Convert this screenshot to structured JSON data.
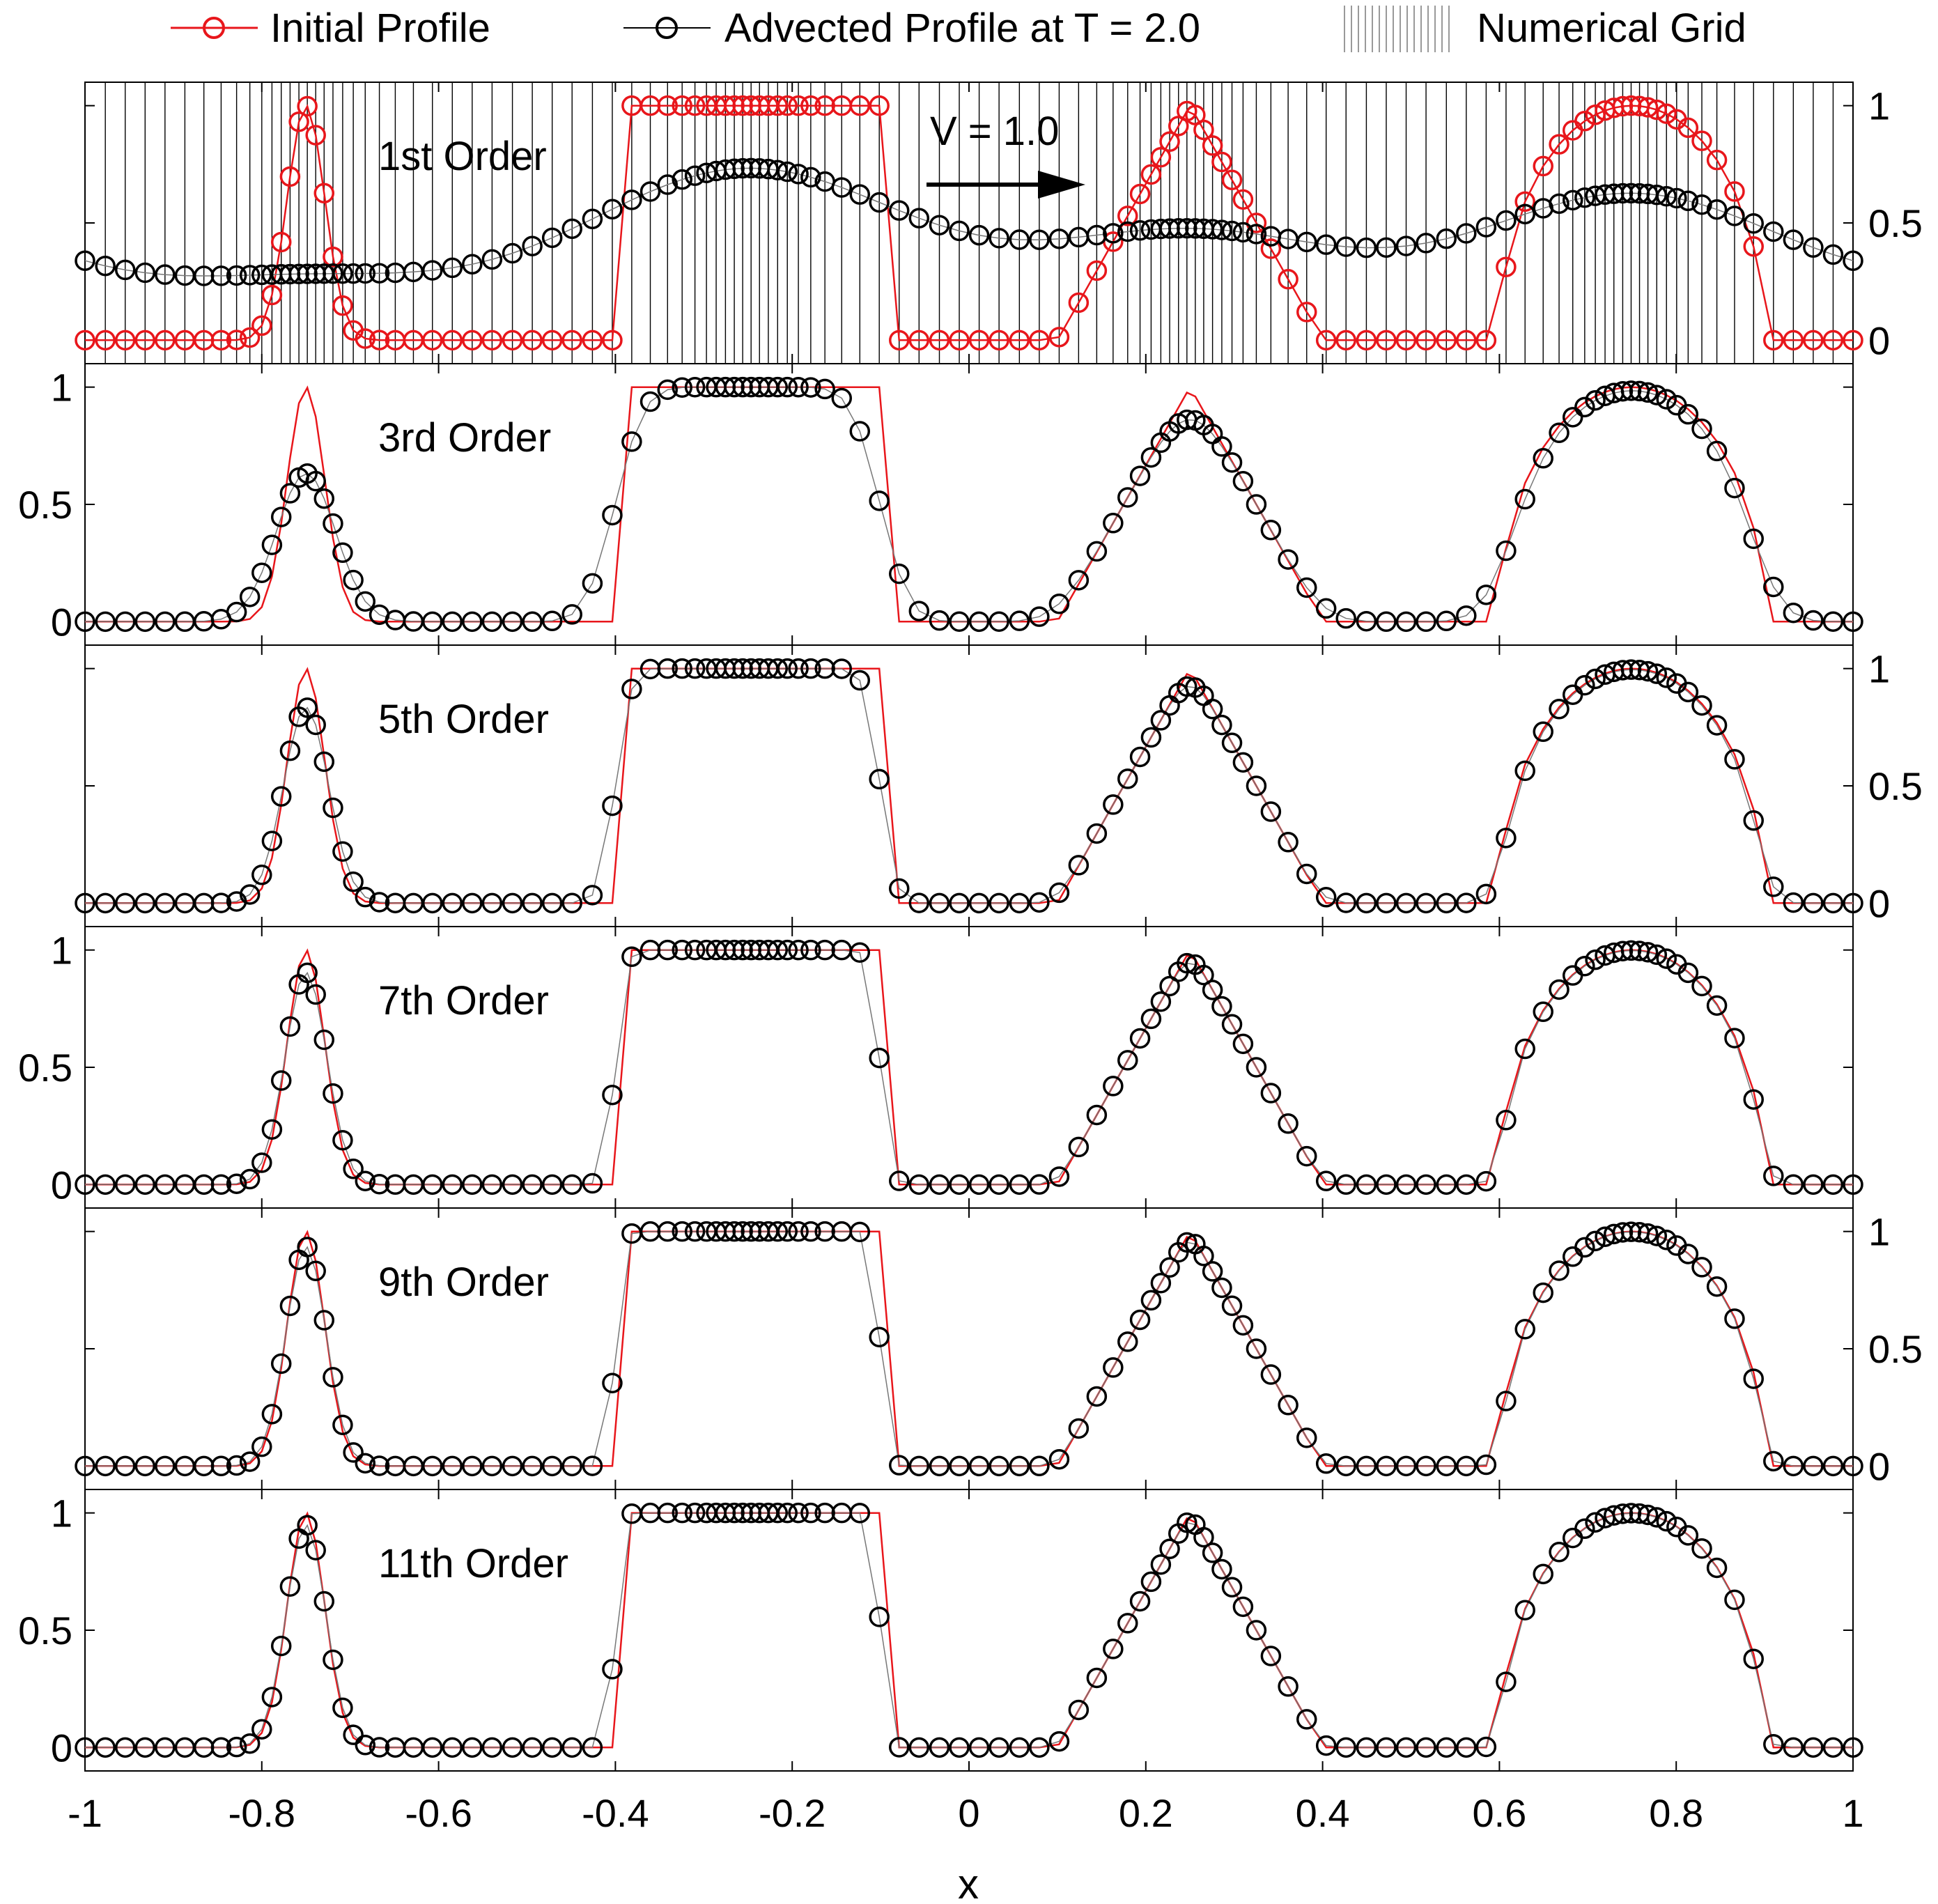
{
  "legend": {
    "initial_label": "Initial Profile",
    "advected_label": "Advected Profile at T = 2.0",
    "grid_label": "Numerical Grid"
  },
  "annotation": {
    "velocity_label": "V = 1.0"
  },
  "colors": {
    "initial": "#e8161b",
    "advected": "#000000",
    "grid": "#000000"
  },
  "chart_data": {
    "type": "line",
    "xlabel": "x",
    "ylabel": "",
    "xlim": [
      -1,
      1
    ],
    "ylim": [
      -0.1,
      1.1
    ],
    "x_ticks": [
      "-1",
      "-0.8",
      "-0.6",
      "-0.4",
      "-0.2",
      "0",
      "0.2",
      "0.4",
      "0.6",
      "0.8",
      "1"
    ],
    "y_ticks": [
      "0",
      "0.5",
      "1"
    ],
    "grid_points": 120,
    "grid_cluster_x": [
      -0.75,
      -0.25,
      0.25,
      0.75
    ],
    "initial_profile": {
      "name": "Initial Profile",
      "gaussian_pulse": {
        "center": -0.75,
        "height": 1.0,
        "width": 0.03
      },
      "square_pulse": {
        "x_min": -0.4,
        "x_max": -0.1,
        "height": 1.0
      },
      "triangle_pulse": {
        "center": 0.25,
        "half_width": 0.15,
        "height": 1.0
      },
      "semicircle_pulse": {
        "center": 0.75,
        "radius": 0.15,
        "height": 1.0
      }
    },
    "panels": [
      {
        "label": "1st Order",
        "y_axis_side": "right",
        "advected_profile": {
          "diffusion_sigma": 0.15,
          "floor": 0.15
        }
      },
      {
        "label": "3rd Order",
        "y_axis_side": "left",
        "advected_profile": {
          "diffusion_sigma": 0.026,
          "floor": 0
        }
      },
      {
        "label": "5th Order",
        "y_axis_side": "right",
        "advected_profile": {
          "diffusion_sigma": 0.014,
          "floor": 0
        }
      },
      {
        "label": "7th Order",
        "y_axis_side": "left",
        "advected_profile": {
          "diffusion_sigma": 0.01,
          "floor": 0
        }
      },
      {
        "label": "9th Order",
        "y_axis_side": "right",
        "advected_profile": {
          "diffusion_sigma": 0.008,
          "floor": 0
        }
      },
      {
        "label": "11th Order",
        "y_axis_side": "left",
        "advected_profile": {
          "diffusion_sigma": 0.007,
          "floor": 0
        }
      }
    ]
  }
}
